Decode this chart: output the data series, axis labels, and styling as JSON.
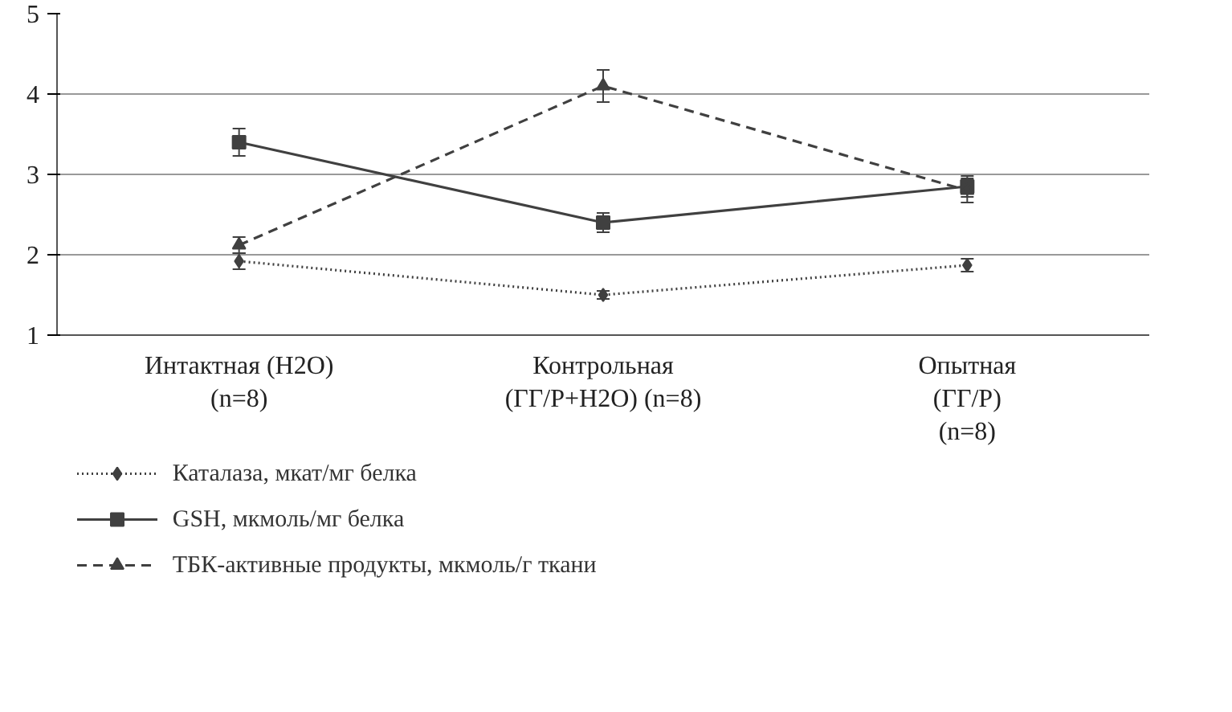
{
  "chart_data": {
    "type": "line",
    "categories": [
      "Интактная (H2O)\n(n=8)",
      "Контрольная\n(ГГ/Р+H2O) (n=8)",
      "Опытная\n(ГГ/Р)\n(n=8)"
    ],
    "series": [
      {
        "name": "Каталаза, мкат/мг белка",
        "color": "#404040",
        "values": [
          1.92,
          1.5,
          1.87
        ],
        "errors": [
          0.1,
          0.05,
          0.08
        ],
        "marker": "diamond",
        "line_style": "dotted"
      },
      {
        "name": "GSH, мкмоль/мг белка",
        "color": "#404040",
        "values": [
          3.4,
          2.4,
          2.85
        ],
        "errors": [
          0.17,
          0.12,
          0.13
        ],
        "marker": "square",
        "line_style": "solid"
      },
      {
        "name": "ТБК-активные продукты, мкмоль/г ткани",
        "color": "#404040",
        "values": [
          2.12,
          4.1,
          2.8
        ],
        "errors": [
          0.1,
          0.2,
          0.15
        ],
        "marker": "triangle",
        "line_style": "dashed"
      }
    ],
    "ylim": [
      1,
      5
    ],
    "yticks": [
      1,
      2,
      3,
      4,
      5
    ],
    "grid": "y",
    "legend": "bottom"
  }
}
